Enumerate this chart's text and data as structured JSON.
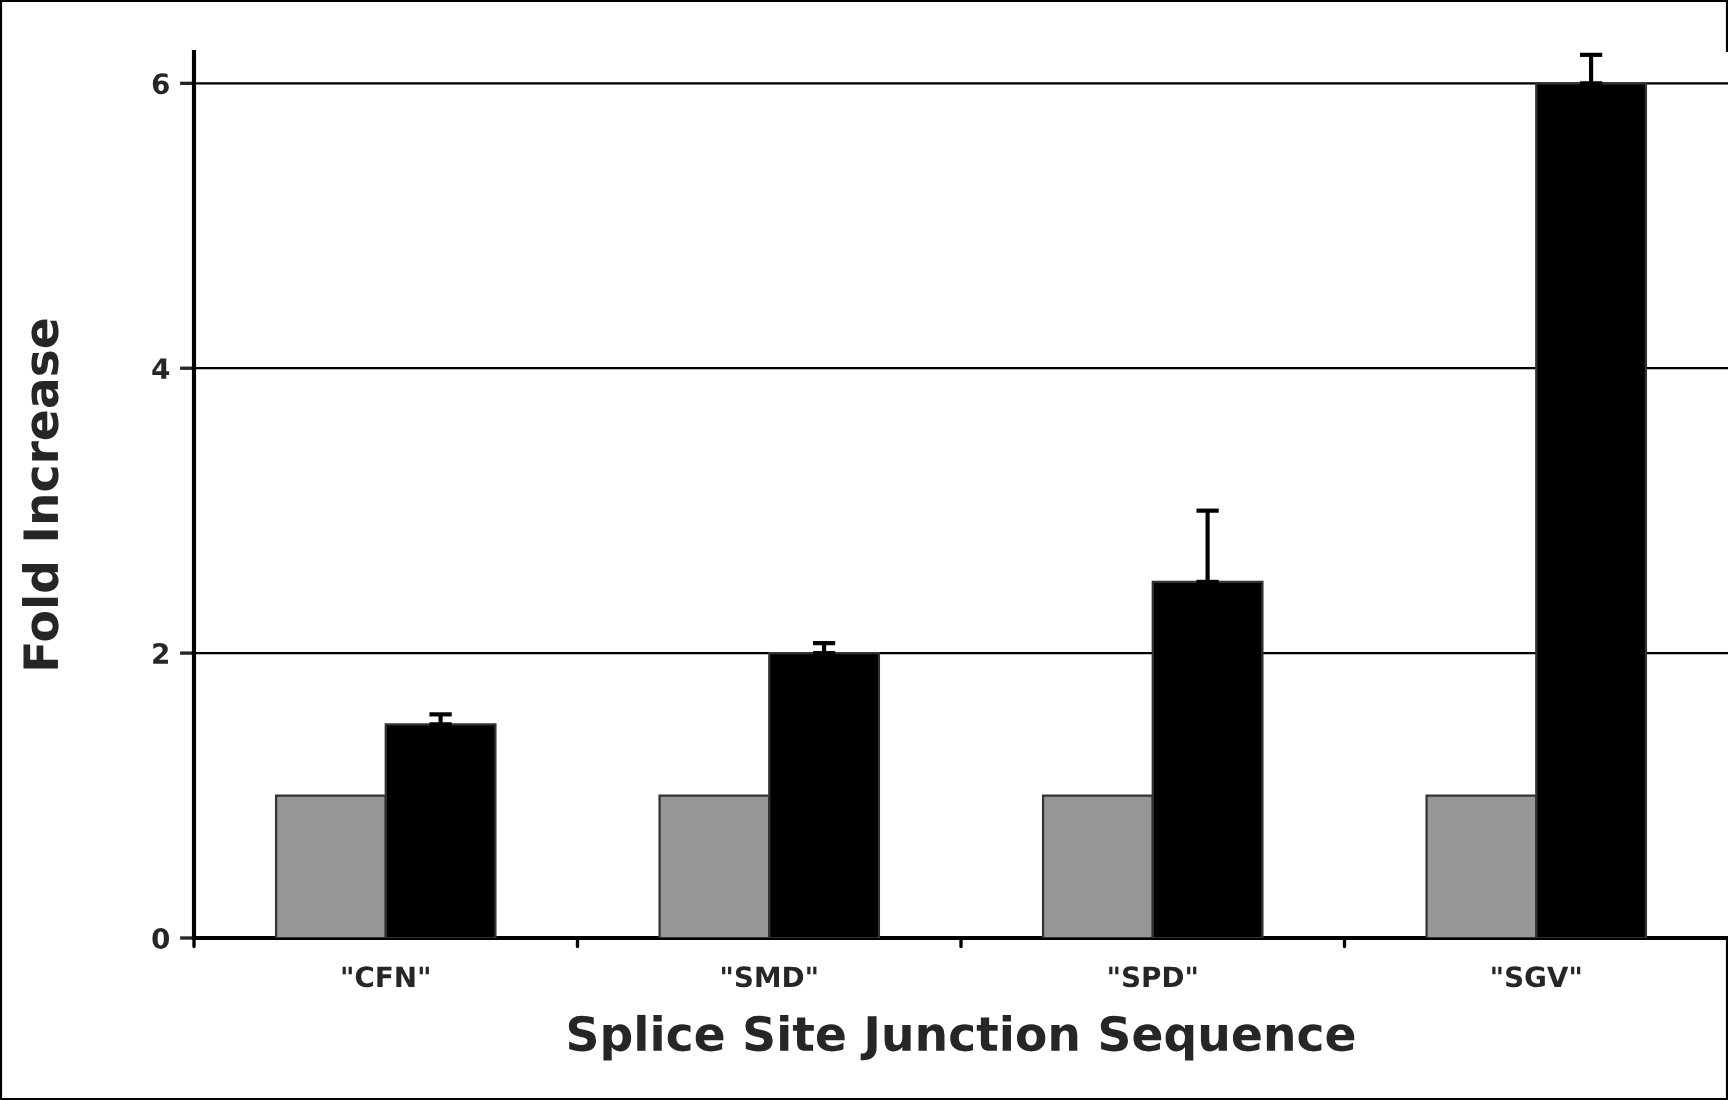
{
  "chart_data": {
    "type": "bar",
    "xlabel": "Splice Site Junction Sequence",
    "ylabel": "Fold Increase",
    "categories": [
      "\"CFN\"",
      "\"SMD\"",
      "\"SPD\"",
      "\"SGV\""
    ],
    "series": [
      {
        "color": "#969696",
        "values": [
          1,
          1,
          1,
          1
        ]
      },
      {
        "color": "#000000",
        "values": [
          1.5,
          2,
          2.5,
          6
        ],
        "errors": [
          [
            1.5,
            1.57
          ],
          [
            2,
            2.07
          ],
          [
            2.5,
            3.0
          ],
          [
            6,
            6.2
          ]
        ]
      }
    ],
    "ylim": [
      0,
      6.22
    ],
    "yticks": [
      0,
      2,
      4,
      6
    ],
    "grid": "y",
    "legend": false
  }
}
